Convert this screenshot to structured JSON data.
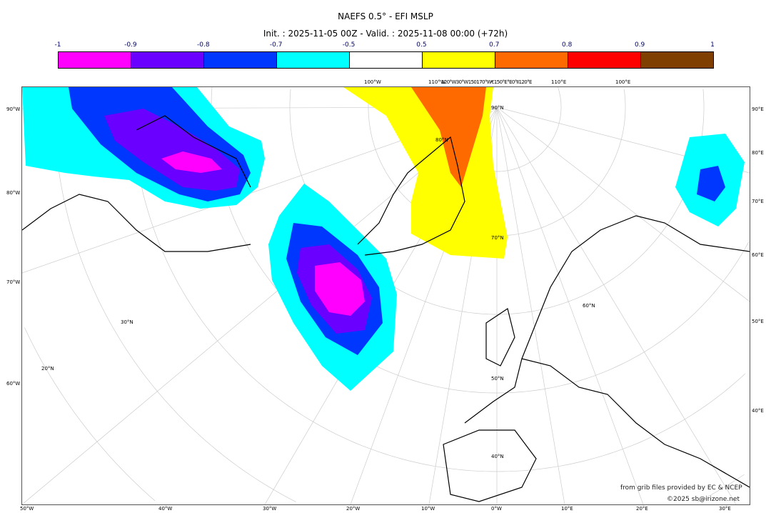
{
  "title": "NAEFS 0.5° - EFI MSLP",
  "subtitle": "Init. : 2025-11-05 00Z - Valid. : 2025-11-08 00:00 (+72h)",
  "colorbar": {
    "ticks": [
      "-1",
      "-0.9",
      "-0.8",
      "-0.7",
      "-0.5",
      "0.5",
      "0.7",
      "0.8",
      "0.9",
      "1"
    ],
    "colors": [
      "#ff00ff",
      "#6a00ff",
      "#0037ff",
      "#00ffff",
      "#ffffff",
      "#ffff00",
      "#ff6a00",
      "#ff0000",
      "#7f3f00"
    ]
  },
  "labels": {
    "bottom": [
      "50°W",
      "40°W",
      "30°W",
      "20°W",
      "10°W",
      "0°W",
      "10°E",
      "20°E",
      "30°E"
    ],
    "left": [
      "90°W",
      "80°W",
      "70°W",
      "60°W"
    ],
    "right": [
      "90°E",
      "80°E",
      "70°E",
      "60°E",
      "50°E",
      "40°E"
    ],
    "top": [
      "100°W",
      "110°W",
      "120°W30°W150170°W€150°E°E0°II120°E",
      "110°E",
      "100°E"
    ],
    "lat": [
      "90°N",
      "80°N",
      "70°N",
      "60°N",
      "50°N",
      "40°N",
      "30°N",
      "20°N"
    ]
  },
  "credits": {
    "source": "from grib files provided by EC & NCEP",
    "copyright": "©2025 sb@irizone.net"
  }
}
